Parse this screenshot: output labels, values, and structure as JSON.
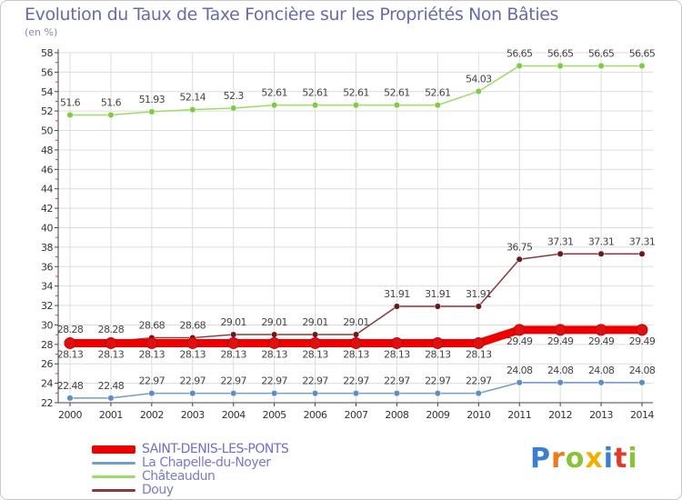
{
  "colors": {
    "title": "#6a6aaa",
    "axis": "#444444",
    "grid": "#dddddd",
    "label": "#555555"
  },
  "chart_data": {
    "type": "line",
    "title": "Evolution du Taux de Taxe Foncière sur les Propriétés Non Bâties",
    "ylabel": "(en %)",
    "xlabel": "",
    "ylim": [
      22,
      58
    ],
    "ytick_step": 2,
    "yticks": [
      "22",
      "24",
      "26",
      "28",
      "30",
      "32",
      "34",
      "36",
      "38",
      "40",
      "42",
      "44",
      "46",
      "48",
      "50",
      "52",
      "54",
      "56",
      "58"
    ],
    "categories": [
      "2000",
      "2001",
      "2002",
      "2003",
      "2004",
      "2005",
      "2006",
      "2007",
      "2008",
      "2009",
      "2010",
      "2011",
      "2012",
      "2013",
      "2014"
    ],
    "legend_position": "bottom-left",
    "series": [
      {
        "name": "SAINT-DENIS-LES-PONTS",
        "color": "#ee0000",
        "marker": "#dd1111",
        "width": 9,
        "labelOffset": 16,
        "values": [
          28.13,
          28.13,
          28.13,
          28.13,
          28.13,
          28.13,
          28.13,
          28.13,
          28.13,
          28.13,
          28.13,
          29.49,
          29.49,
          29.49,
          29.49
        ],
        "labels": [
          "28.13",
          "28.13",
          "28.13",
          "28.13",
          "28.13",
          "28.13",
          "28.13",
          "28.13",
          "28.13",
          "28.13",
          "28.13",
          "29.49",
          "29.49",
          "29.49",
          "29.49"
        ]
      },
      {
        "name": "La Chapelle-du-Noyer",
        "color": "#6f9fcc",
        "marker": "#5b8fc5",
        "width": 1.5,
        "labelOffset": -10,
        "values": [
          22.48,
          22.48,
          22.97,
          22.97,
          22.97,
          22.97,
          22.97,
          22.97,
          22.97,
          22.97,
          22.97,
          24.08,
          24.08,
          24.08,
          24.08
        ],
        "labels": [
          "22.48",
          "22.48",
          "22.97",
          "22.97",
          "22.97",
          "22.97",
          "22.97",
          "22.97",
          "22.97",
          "22.97",
          "22.97",
          "24.08",
          "24.08",
          "24.08",
          "24.08"
        ]
      },
      {
        "name": "Châteaudun",
        "color": "#99dd66",
        "marker": "#7fcc44",
        "width": 1.5,
        "labelOffset": -10,
        "values": [
          51.6,
          51.6,
          51.93,
          52.14,
          52.3,
          52.61,
          52.61,
          52.61,
          52.61,
          52.61,
          54.03,
          56.65,
          56.65,
          56.65,
          56.65
        ],
        "labels": [
          "51.6",
          "51.6",
          "51.93",
          "52.14",
          "52.3",
          "52.61",
          "52.61",
          "52.61",
          "52.61",
          "52.61",
          "54.03",
          "56.65",
          "56.65",
          "56.65",
          "56.65"
        ]
      },
      {
        "name": "Douy",
        "color": "#8b3a3a",
        "marker": "#6b1a1a",
        "width": 1.5,
        "labelOffset": -10,
        "values": [
          28.28,
          28.28,
          28.68,
          28.68,
          29.01,
          29.01,
          29.01,
          29.01,
          31.91,
          31.91,
          31.91,
          36.75,
          37.31,
          37.31,
          37.31
        ],
        "labels": [
          "28.28",
          "28.28",
          "28.68",
          "28.68",
          "29.01",
          "29.01",
          "29.01",
          "29.01",
          "31.91",
          "31.91",
          "31.91",
          "36.75",
          "37.31",
          "37.31",
          "37.31"
        ]
      }
    ]
  },
  "logo": {
    "letters": [
      "P",
      "r",
      "o",
      "x",
      "i",
      "t",
      "i"
    ],
    "colors": [
      "#3a7fd0",
      "#f07a1a",
      "#8ac33a",
      "#f0b000",
      "#3a7fd0",
      "#e03a2a",
      "#8ac33a"
    ]
  }
}
